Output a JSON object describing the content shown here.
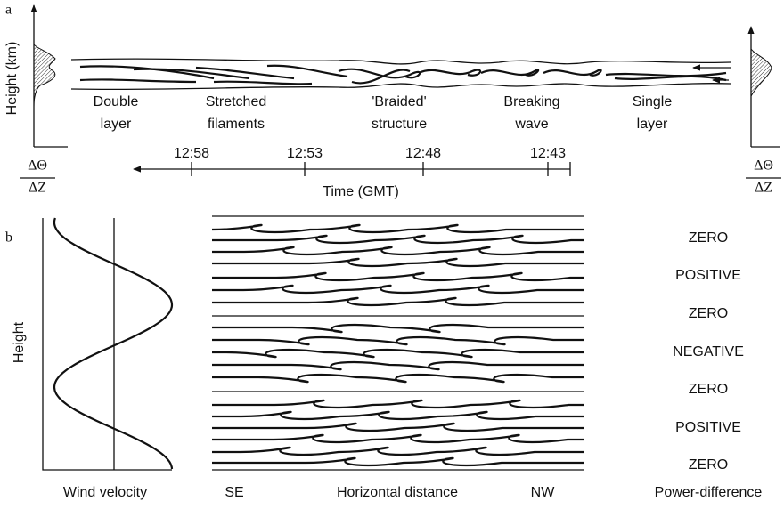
{
  "panel_a": {
    "label": "a",
    "y_axis_label": "Height (km)",
    "stages": [
      [
        "Double",
        "layer"
      ],
      [
        "Stretched",
        "filaments"
      ],
      [
        "'Braided'",
        "structure"
      ],
      [
        "Breaking",
        "wave"
      ],
      [
        "Single",
        "layer"
      ]
    ],
    "time_ticks": [
      "12:58",
      "12:53",
      "12:48",
      "12:43"
    ],
    "time_axis_label": "Time (GMT)",
    "gradient_label": {
      "numerator": "ΔΘ",
      "denominator": "ΔZ"
    }
  },
  "panel_b": {
    "label": "b",
    "y_axis_label": "Height",
    "left_axis_label": "Wind velocity",
    "direction_left": "SE",
    "middle_axis_label": "Horizontal distance",
    "direction_right": "NW",
    "right_axis_label": "Power-difference",
    "power_labels": [
      "ZERO",
      "POSITIVE",
      "ZERO",
      "NEGATIVE",
      "ZERO",
      "POSITIVE",
      "ZERO"
    ]
  }
}
